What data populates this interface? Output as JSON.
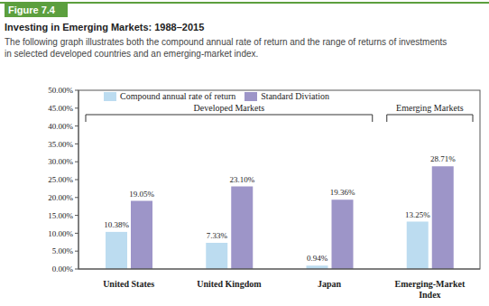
{
  "chart_data": {
    "type": "bar",
    "header": "Figure 7.4",
    "title": "Investing in Emerging Markets: 1988–2015",
    "subtitle": "The following graph illustrates both the compound annual rate of return and the range of returns of investments in selected developed countries and an emerging-market index.",
    "categories": [
      "United States",
      "United Kingdom",
      "Japan",
      "Emerging-Market Index"
    ],
    "series": [
      {
        "name": "Compound annual rate of return",
        "color": "#bcdcf0",
        "values": [
          10.38,
          7.33,
          0.94,
          13.25
        ],
        "value_labels": [
          "10.38%",
          "7.33%",
          "0.94%",
          "13.25%"
        ]
      },
      {
        "name": "Standard Diviation",
        "color": "#9d95c8",
        "values": [
          19.05,
          23.1,
          19.36,
          28.71
        ],
        "value_labels": [
          "19.05%",
          "23.10%",
          "19.36%",
          "28.71%"
        ]
      }
    ],
    "ylim": [
      0,
      50
    ],
    "yticks": [
      {
        "value": 0,
        "label": "0.00%"
      },
      {
        "value": 5,
        "label": "5.00%"
      },
      {
        "value": 10,
        "label": "10.00%"
      },
      {
        "value": 15,
        "label": "15.00%"
      },
      {
        "value": 20,
        "label": "20.00%"
      },
      {
        "value": 25,
        "label": "25.00%"
      },
      {
        "value": 30,
        "label": "30.00%"
      },
      {
        "value": 35,
        "label": "35.00%"
      },
      {
        "value": 40,
        "label": "40.00%"
      },
      {
        "value": 45,
        "label": "45.00%"
      },
      {
        "value": 50,
        "label": "50.00%"
      }
    ],
    "grid": false,
    "legend": "top-left",
    "data_labels": true,
    "annotations": [
      {
        "text": "Developed Markets",
        "categories": [
          "United States",
          "United Kingdom",
          "Japan"
        ]
      },
      {
        "text": "Emerging Markets",
        "categories": [
          "Emerging-Market Index"
        ]
      }
    ]
  }
}
